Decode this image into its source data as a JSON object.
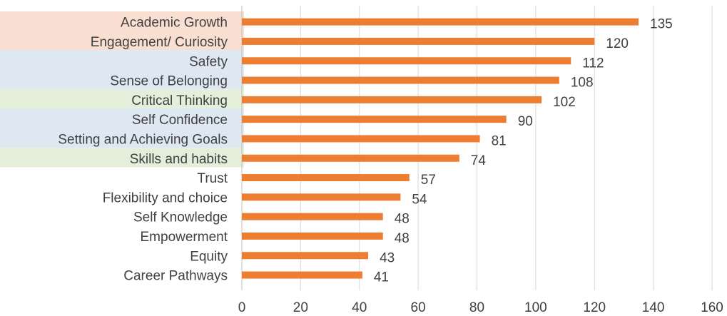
{
  "chart_data": {
    "type": "bar",
    "orientation": "horizontal",
    "title": "",
    "xlabel": "",
    "ylabel": "",
    "categories": [
      "Academic Growth",
      "Engagement/ Curiosity",
      "Safety",
      "Sense of Belonging",
      "Critical Thinking",
      "Self Confidence",
      "Setting and Achieving Goals",
      "Skills and habits",
      "Trust",
      "Flexibility and choice",
      "Self Knowledge",
      "Empowerment",
      "Equity",
      "Career Pathways"
    ],
    "values": [
      135,
      120,
      112,
      108,
      102,
      90,
      81,
      74,
      57,
      54,
      48,
      48,
      43,
      41
    ],
    "xlim": [
      0,
      160
    ],
    "xticks": [
      0,
      20,
      40,
      60,
      80,
      100,
      120,
      140,
      160
    ],
    "grid": "vertical",
    "legend": "none",
    "bar_color": "#ED7D31",
    "label_highlights": [
      {
        "color": "#F8DFD2",
        "from": 0,
        "to": 1
      },
      {
        "color": "#DEE8F3",
        "from": 2,
        "to": 3
      },
      {
        "color": "#E3EFDB",
        "from": 4,
        "to": 4
      },
      {
        "color": "#DEE8F3",
        "from": 5,
        "to": 6
      },
      {
        "color": "#E3EFDB",
        "from": 7,
        "to": 7
      }
    ]
  }
}
